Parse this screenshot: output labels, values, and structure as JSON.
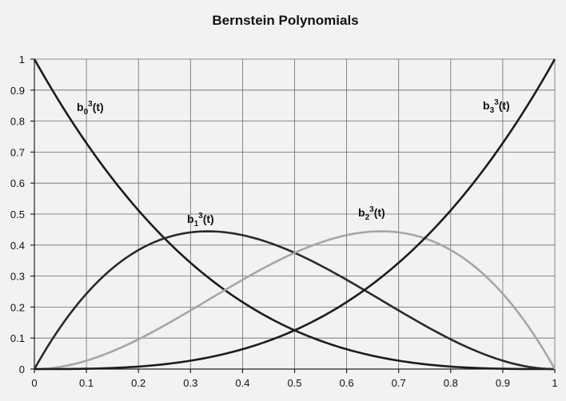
{
  "chart_data": {
    "type": "line",
    "title": "Bernstein Polynomials",
    "xlabel": "",
    "ylabel": "",
    "xlim": [
      0,
      1
    ],
    "ylim": [
      0,
      1
    ],
    "grid": true,
    "x_ticks": [
      "0",
      "0.1",
      "0.2",
      "0.3",
      "0.4",
      "0.5",
      "0.6",
      "0.7",
      "0.8",
      "0.9",
      "1"
    ],
    "y_ticks": [
      "0",
      "0.1",
      "0.2",
      "0.3",
      "0.4",
      "0.5",
      "0.6",
      "0.7",
      "0.8",
      "0.9",
      "1"
    ],
    "x": [
      0,
      0.1,
      0.2,
      0.3,
      0.4,
      0.5,
      0.6,
      0.7,
      0.8,
      0.9,
      1
    ],
    "series": [
      {
        "name": "b0^3(t)",
        "label": {
          "base": "b",
          "sub": "0",
          "sup": "3",
          "arg": "(t)"
        },
        "color": "#1c1c1c",
        "values": [
          1,
          0.729,
          0.512,
          0.343,
          0.216,
          0.125,
          0.064,
          0.027,
          0.008,
          0.001,
          0
        ]
      },
      {
        "name": "b1^3(t)",
        "label": {
          "base": "b",
          "sub": "1",
          "sup": "3",
          "arg": "(t)"
        },
        "color": "#2a2a2a",
        "values": [
          0,
          0.243,
          0.384,
          0.441,
          0.432,
          0.375,
          0.288,
          0.189,
          0.096,
          0.027,
          0
        ]
      },
      {
        "name": "b2^3(t)",
        "label": {
          "base": "b",
          "sub": "2",
          "sup": "3",
          "arg": "(t)"
        },
        "color": "#a6a6a6",
        "values": [
          0,
          0.027,
          0.096,
          0.189,
          0.288,
          0.375,
          0.432,
          0.441,
          0.384,
          0.243,
          0
        ]
      },
      {
        "name": "b3^3(t)",
        "label": {
          "base": "b",
          "sub": "3",
          "sup": "3",
          "arg": "(t)"
        },
        "color": "#1c1c1c",
        "values": [
          0,
          0.001,
          0.008,
          0.027,
          0.064,
          0.125,
          0.216,
          0.343,
          0.512,
          0.729,
          1
        ]
      }
    ]
  }
}
